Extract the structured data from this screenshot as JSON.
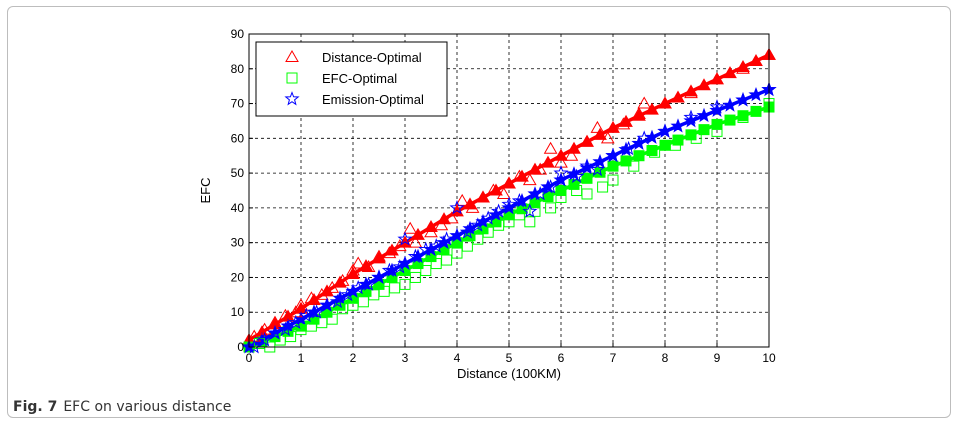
{
  "caption": {
    "label": "Fig. 7",
    "text": "EFC on various distance"
  },
  "chart_data": {
    "type": "scatter",
    "title": "",
    "xlabel": "Distance (100KM)",
    "ylabel": "EFC",
    "xlim": [
      0,
      10
    ],
    "ylim": [
      0,
      90
    ],
    "xticks": [
      0,
      1,
      2,
      3,
      4,
      5,
      6,
      7,
      8,
      9,
      10
    ],
    "yticks": [
      0,
      10,
      20,
      30,
      40,
      50,
      60,
      70,
      80,
      90
    ],
    "grid": true,
    "legend_position": "top-left",
    "series": [
      {
        "name": "Distance-Optimal",
        "color": "#ff0000",
        "marker": "triangle",
        "fit": {
          "x": [
            0,
            1,
            2,
            3,
            4,
            5,
            6,
            7,
            8,
            9,
            10
          ],
          "y": [
            2,
            11,
            21,
            30,
            39,
            47,
            55,
            63,
            70,
            77,
            84
          ]
        },
        "points": {
          "x": [
            0.1,
            0.3,
            0.5,
            0.7,
            0.9,
            1.0,
            1.2,
            1.4,
            1.6,
            1.8,
            2.0,
            2.1,
            2.3,
            2.5,
            2.7,
            2.9,
            3.1,
            3.2,
            3.5,
            3.7,
            3.9,
            4.1,
            4.3,
            4.5,
            4.7,
            4.9,
            5.0,
            5.2,
            5.4,
            5.6,
            5.8,
            6.0,
            6.2,
            6.5,
            6.7,
            6.9,
            7.2,
            7.5,
            7.6,
            8.0,
            8.5,
            9.0,
            9.5,
            10.0
          ],
          "y": [
            3,
            5,
            7,
            9,
            10,
            12,
            14,
            15,
            17,
            19,
            22,
            24,
            23,
            26,
            27,
            29,
            34,
            30,
            33,
            35,
            37,
            42,
            40,
            43,
            45,
            44,
            47,
            49,
            48,
            51,
            57,
            53,
            55,
            59,
            63,
            60,
            64,
            67,
            70,
            70,
            73,
            77,
            80,
            84
          ]
        }
      },
      {
        "name": "EFC-Optimal",
        "color": "#00ff00",
        "marker": "square",
        "fit": {
          "x": [
            0,
            1,
            2,
            3,
            4,
            5,
            6,
            7,
            8,
            9,
            10
          ],
          "y": [
            0,
            6,
            14,
            22,
            30,
            38,
            45,
            52,
            58,
            64,
            69
          ]
        },
        "points": {
          "x": [
            0.2,
            0.4,
            0.6,
            0.8,
            1.0,
            1.2,
            1.4,
            1.6,
            1.8,
            2.0,
            2.2,
            2.4,
            2.6,
            2.8,
            3.0,
            3.2,
            3.4,
            3.6,
            3.8,
            4.0,
            4.2,
            4.4,
            4.6,
            4.8,
            5.0,
            5.2,
            5.4,
            5.5,
            5.8,
            6.0,
            6.3,
            6.5,
            6.8,
            7.0,
            7.4,
            7.8,
            8.2,
            8.6,
            9.0,
            9.5,
            10.0
          ],
          "y": [
            1,
            0,
            2,
            3,
            5,
            6,
            7,
            8,
            11,
            12,
            13,
            15,
            16,
            17,
            18,
            20,
            22,
            24,
            25,
            27,
            29,
            31,
            33,
            35,
            36,
            38,
            36,
            39,
            40,
            43,
            45,
            44,
            46,
            48,
            52,
            56,
            58,
            60,
            62,
            66,
            70
          ]
        }
      },
      {
        "name": "Emission-Optimal",
        "color": "#0000ff",
        "marker": "star",
        "fit": {
          "x": [
            0,
            1,
            2,
            3,
            4,
            5,
            6,
            7,
            8,
            9,
            10
          ],
          "y": [
            0,
            8,
            16,
            24,
            32,
            40,
            48,
            55,
            62,
            68,
            74
          ]
        },
        "points": {
          "x": [
            0.1,
            0.3,
            0.5,
            0.7,
            0.9,
            1.1,
            1.3,
            1.5,
            1.7,
            1.9,
            2.1,
            2.3,
            2.5,
            2.7,
            2.9,
            3.0,
            3.2,
            3.4,
            3.6,
            3.8,
            4.0,
            4.2,
            4.4,
            4.6,
            4.8,
            5.0,
            5.2,
            5.4,
            5.6,
            5.8,
            6.0,
            6.3,
            6.5,
            6.7,
            7.0,
            7.3,
            7.6,
            8.0,
            8.5,
            9.0,
            9.5,
            10.0
          ],
          "y": [
            0,
            2,
            4,
            5,
            7,
            9,
            10,
            12,
            13,
            15,
            17,
            18,
            20,
            22,
            23,
            31,
            26,
            28,
            29,
            31,
            40,
            33,
            35,
            37,
            39,
            41,
            42,
            39,
            44,
            46,
            50,
            49,
            52,
            51,
            55,
            57,
            60,
            62,
            66,
            69,
            71,
            74
          ]
        }
      }
    ]
  }
}
